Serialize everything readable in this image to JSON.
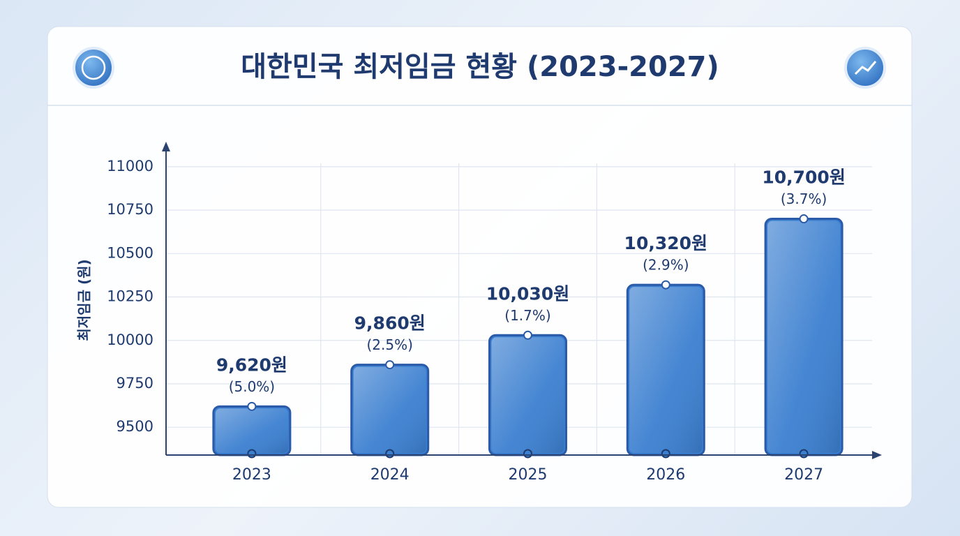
{
  "chart_data": {
    "type": "bar",
    "title": "대한민국 최저임금 현황 (2023-2027)",
    "y_label": "최저임금 (원)",
    "categories": [
      "2023",
      "2024",
      "2025",
      "2026",
      "2027"
    ],
    "values": [
      9620,
      9860,
      10030,
      10320,
      10700
    ],
    "value_labels": [
      "9,620원",
      "9,860원",
      "10,030원",
      "10,320원",
      "10,700원"
    ],
    "annotations": [
      "(5.0%)",
      "(2.5%)",
      "(1.7%)",
      "(2.9%)",
      "(3.7%)"
    ],
    "color": "#3b7fd0",
    "ylim": [
      9340,
      11100
    ],
    "yticks": [
      9500,
      9750,
      10000,
      10250,
      10500,
      10750,
      11000
    ],
    "grid": true
  }
}
